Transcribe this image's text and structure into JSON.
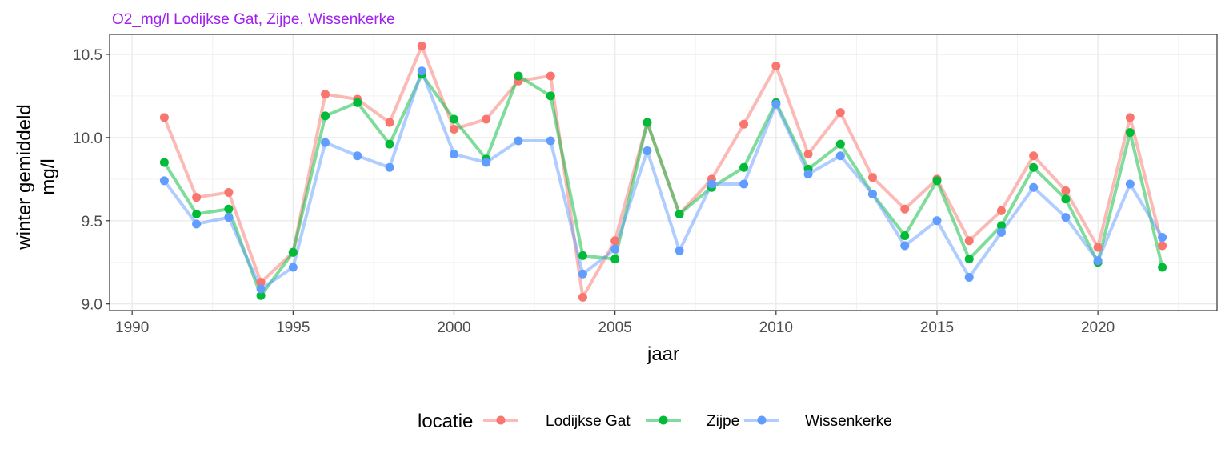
{
  "chart_data": {
    "type": "line",
    "title": "O2_mg/l Lodijkse Gat, Zijpe, Wissenkerke",
    "xlabel": "jaar",
    "ylabel": [
      "winter gemiddeld",
      "mg/l"
    ],
    "xlim": [
      1989.3,
      2023.7
    ],
    "ylim": [
      8.96,
      10.62
    ],
    "xticks": [
      1990,
      1995,
      2000,
      2005,
      2010,
      2015,
      2020
    ],
    "xtick_labels": [
      "1990",
      "1995",
      "2000",
      "2005",
      "2010",
      "2015",
      "2020"
    ],
    "yticks": [
      9.0,
      9.5,
      10.0,
      10.5
    ],
    "ytick_labels": [
      "9.0",
      "9.5",
      "10.0",
      "10.5"
    ],
    "grid": true,
    "legend": {
      "title": "locatie",
      "position": "bottom"
    },
    "x": [
      1991,
      1992,
      1993,
      1994,
      1995,
      1996,
      1997,
      1998,
      1999,
      2000,
      2001,
      2002,
      2003,
      2004,
      2005,
      2006,
      2007,
      2008,
      2009,
      2010,
      2011,
      2012,
      2013,
      2014,
      2015,
      2016,
      2017,
      2018,
      2019,
      2020,
      2021,
      2022
    ],
    "series": [
      {
        "name": "Lodijkse Gat",
        "color": "#F8766D",
        "values": [
          10.12,
          9.64,
          9.67,
          9.13,
          9.31,
          10.26,
          10.23,
          10.09,
          10.55,
          10.05,
          10.11,
          10.34,
          10.37,
          9.04,
          9.38,
          10.09,
          9.54,
          9.75,
          10.08,
          10.43,
          9.9,
          10.15,
          9.76,
          9.57,
          9.75,
          9.38,
          9.56,
          9.89,
          9.68,
          9.34,
          10.12,
          9.35
        ]
      },
      {
        "name": "Zijpe",
        "color": "#00BA38",
        "values": [
          9.85,
          9.54,
          9.57,
          9.05,
          9.31,
          10.13,
          10.21,
          9.96,
          10.38,
          10.11,
          9.87,
          10.37,
          10.25,
          9.29,
          9.27,
          10.09,
          9.54,
          9.7,
          9.82,
          10.21,
          9.81,
          9.96,
          9.66,
          9.41,
          9.74,
          9.27,
          9.47,
          9.82,
          9.63,
          9.25,
          10.03,
          9.22
        ]
      },
      {
        "name": "Wissenkerke",
        "color": "#619CFF",
        "values": [
          9.74,
          9.48,
          9.52,
          9.09,
          9.22,
          9.97,
          9.89,
          9.82,
          10.4,
          9.9,
          9.85,
          9.98,
          9.98,
          9.18,
          9.33,
          9.92,
          9.32,
          9.72,
          9.72,
          10.2,
          9.78,
          9.89,
          9.66,
          9.35,
          9.5,
          9.16,
          9.43,
          9.7,
          9.52,
          9.26,
          9.72,
          9.4
        ]
      }
    ]
  }
}
